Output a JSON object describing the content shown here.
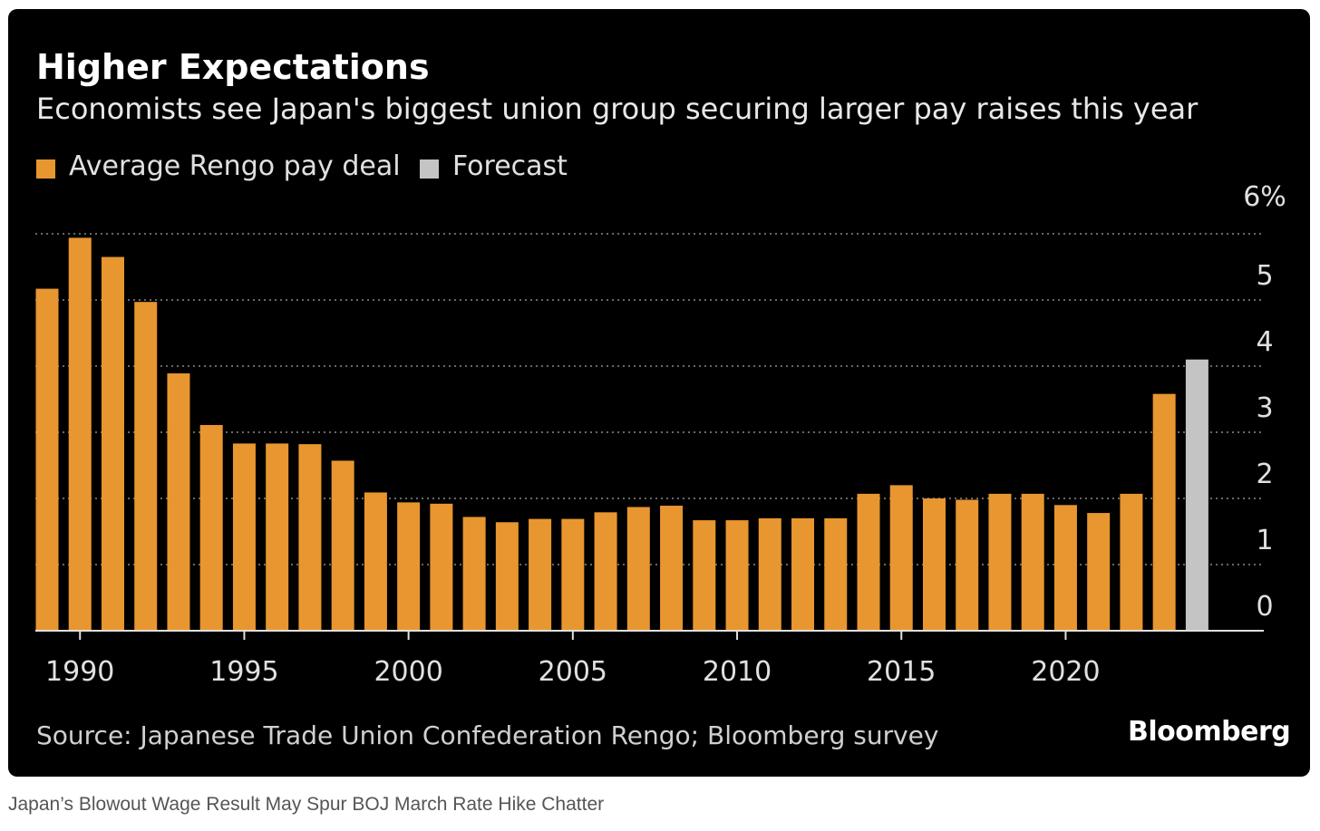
{
  "header": {
    "title": "Higher Expectations",
    "subtitle": "Economists see Japan's biggest union group securing larger pay raises this year"
  },
  "legend": [
    {
      "label": "Average Rengo pay deal",
      "color": "#e8962f"
    },
    {
      "label": "Forecast",
      "color": "#c4c4c4"
    }
  ],
  "footer": {
    "source": "Source: Japanese Trade Union Confederation Rengo; Bloomberg survey",
    "brand": "Bloomberg"
  },
  "caption": "Japan’s Blowout Wage Result May Spur BOJ March Rate Hike Chatter",
  "chart_data": {
    "type": "bar",
    "x": [
      1989,
      1990,
      1991,
      1992,
      1993,
      1994,
      1995,
      1996,
      1997,
      1998,
      1999,
      2000,
      2001,
      2002,
      2003,
      2004,
      2005,
      2006,
      2007,
      2008,
      2009,
      2010,
      2011,
      2012,
      2013,
      2014,
      2015,
      2016,
      2017,
      2018,
      2019,
      2020,
      2021,
      2022,
      2023,
      2024
    ],
    "series": [
      {
        "name": "Average Rengo pay deal",
        "color": "#e8962f",
        "values": [
          5.17,
          5.94,
          5.65,
          4.97,
          3.89,
          3.11,
          2.83,
          2.83,
          2.82,
          2.57,
          2.09,
          1.94,
          1.92,
          1.72,
          1.64,
          1.69,
          1.69,
          1.79,
          1.87,
          1.89,
          1.67,
          1.67,
          1.7,
          1.7,
          1.7,
          2.07,
          2.2,
          2.0,
          1.98,
          2.07,
          2.07,
          1.9,
          1.78,
          2.07,
          3.58,
          null
        ]
      },
      {
        "name": "Forecast",
        "color": "#c4c4c4",
        "values": [
          null,
          null,
          null,
          null,
          null,
          null,
          null,
          null,
          null,
          null,
          null,
          null,
          null,
          null,
          null,
          null,
          null,
          null,
          null,
          null,
          null,
          null,
          null,
          null,
          null,
          null,
          null,
          null,
          null,
          null,
          null,
          null,
          null,
          null,
          null,
          4.1
        ]
      }
    ],
    "x_ticks": [
      "1990",
      "1995",
      "2000",
      "2005",
      "2010",
      "2015",
      "2020"
    ],
    "y_ticks": [
      "6%",
      "5",
      "4",
      "3",
      "2",
      "1",
      "0"
    ],
    "ylim": [
      0,
      6
    ],
    "grid": true
  }
}
